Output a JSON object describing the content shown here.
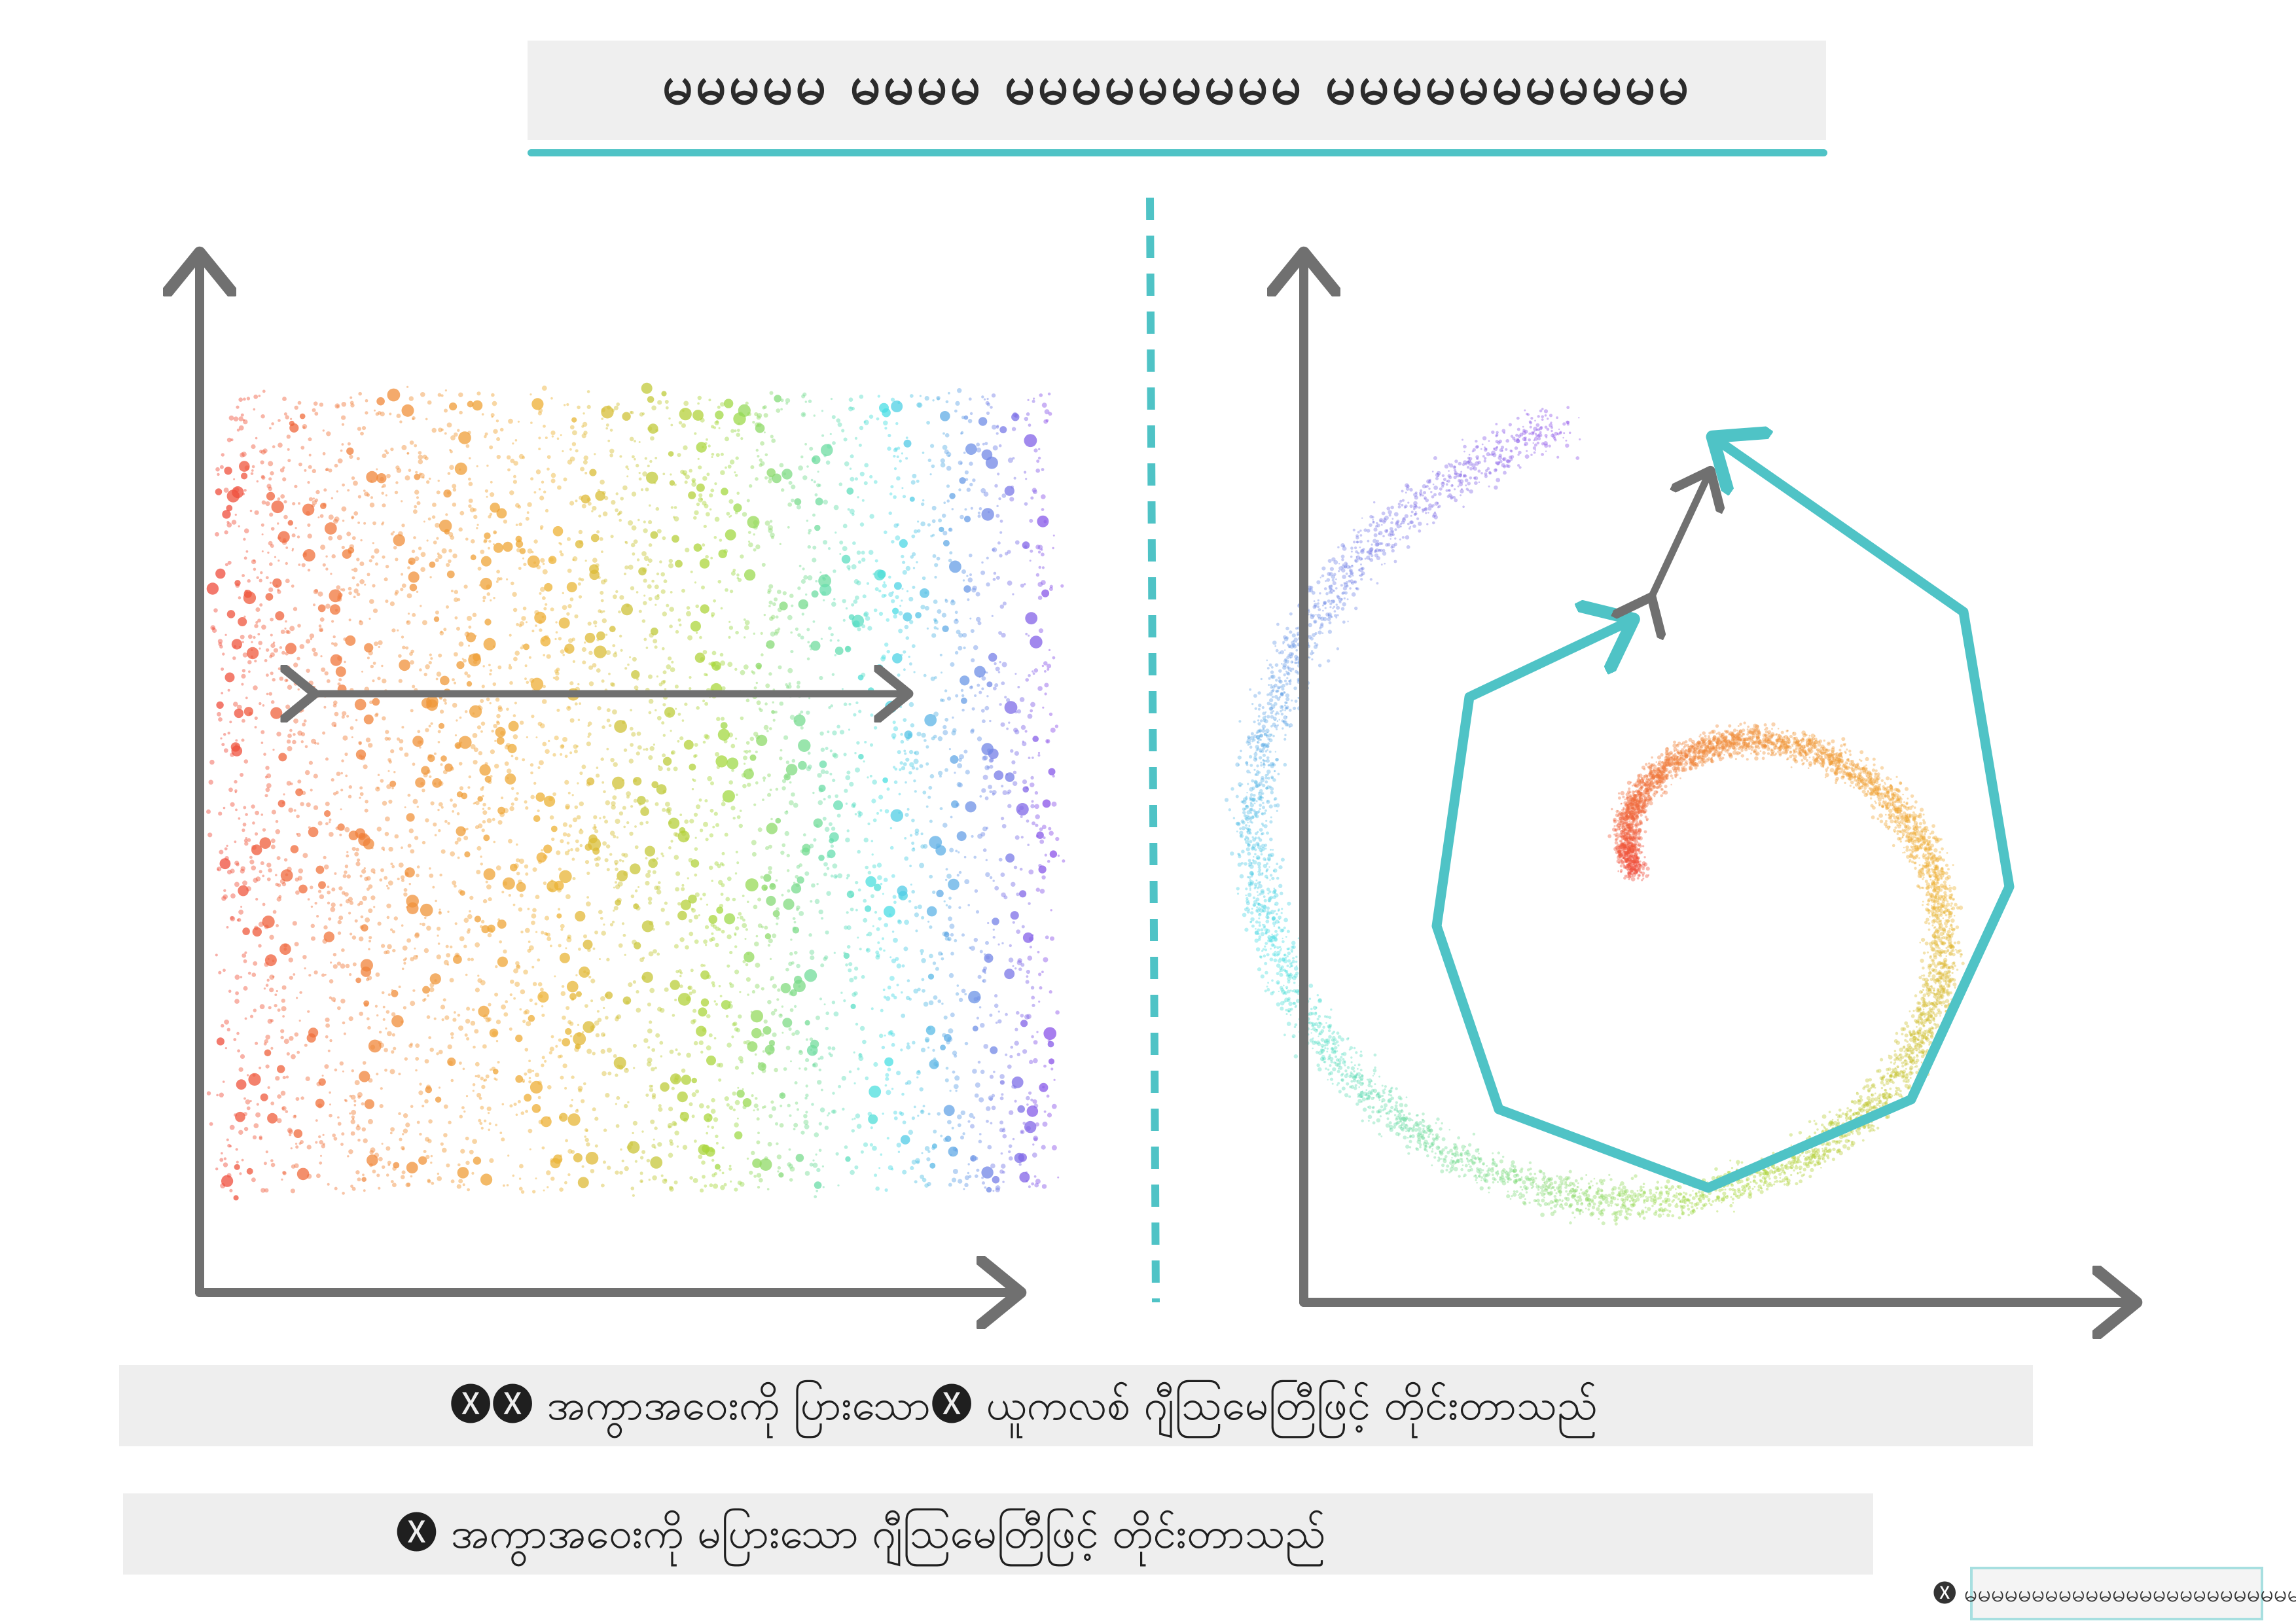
{
  "title": "မမမမမ မမမမ မမမမမမမမမ မမမမမမမမမမမ",
  "captions": {
    "euclidean": "🅧🅧 အကွာအဝေးကို ပြားသော🅧 ယူကလစ် ဂျီသြမေတြီဖြင့် တိုင်းတာသည်",
    "non_euclidean": "🅧 အကွာအဝေးကို မပြားသော ဂျီသြမေတြီဖြင့် တိုင်းတာသည်"
  },
  "credit": "🅧 မမမမမမမမမမမမမမမမမမမမမမမမမ",
  "colors": {
    "axis": "#707070",
    "accent": "#4fc3c6",
    "rainbow": [
      "#ef4b3c",
      "#f08a3a",
      "#eeb134",
      "#a6d83c",
      "#48dfe4",
      "#8c4ee8"
    ]
  },
  "panels": {
    "left": {
      "kind": "flat scatter",
      "measure": "straight line across band"
    },
    "right": {
      "kind": "spiral (swiss roll)",
      "measure": "path along manifold"
    }
  }
}
